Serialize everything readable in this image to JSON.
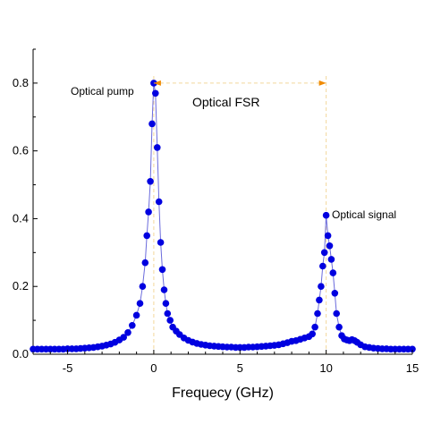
{
  "chart_data": {
    "type": "scatter",
    "title": "",
    "xlabel": "Frequecy (GHz)",
    "ylabel": "",
    "xlim": [
      -7,
      15
    ],
    "ylim": [
      0,
      0.9
    ],
    "xticks": [
      -5,
      0,
      5,
      10,
      15
    ],
    "xtick_labels": [
      "-5",
      "0",
      "5",
      "10",
      "15"
    ],
    "yticks": [
      0.0,
      0.2,
      0.4,
      0.6,
      0.8
    ],
    "ytick_labels": [
      "0.0",
      "0.2",
      "0.4",
      "0.6",
      "0.8"
    ],
    "grid": false,
    "colors": {
      "marker": "#0000e0",
      "line": "#6b6bdc",
      "arrow": "#f08a00",
      "guide": "#f2d79a"
    },
    "annotations": {
      "pump_label": "Optical pump",
      "fsr_label": "Optical FSR",
      "signal_label": "Optical signal"
    },
    "fsr_arrow": {
      "from_x": 0,
      "to_x": 10,
      "y": 0.8
    },
    "guides_x": [
      0,
      10
    ],
    "series": [
      {
        "x": [
          -7.0,
          -6.75,
          -6.5,
          -6.25,
          -6.0,
          -5.75,
          -5.5,
          -5.25,
          -5.0,
          -4.75,
          -4.5,
          -4.25,
          -4.0,
          -3.75,
          -3.5,
          -3.25,
          -3.0,
          -2.75,
          -2.5,
          -2.25,
          -2.0,
          -1.75,
          -1.5,
          -1.25,
          -1.0,
          -0.8,
          -0.65,
          -0.5,
          -0.4,
          -0.3,
          -0.2,
          -0.1,
          0.0,
          0.1,
          0.2,
          0.3,
          0.4,
          0.5,
          0.6,
          0.7,
          0.8,
          0.95,
          1.1,
          1.3,
          1.5,
          1.75,
          2.0,
          2.25,
          2.5,
          2.75,
          3.0,
          3.25,
          3.5,
          3.75,
          4.0,
          4.25,
          4.5,
          4.75,
          5.0,
          5.25,
          5.5,
          5.75,
          6.0,
          6.25,
          6.5,
          6.75,
          7.0,
          7.25,
          7.5,
          7.75,
          8.0,
          8.25,
          8.5,
          8.75,
          9.0,
          9.2,
          9.35,
          9.5,
          9.6,
          9.7,
          9.8,
          9.9,
          10.0,
          10.1,
          10.2,
          10.3,
          10.4,
          10.5,
          10.6,
          10.75,
          10.9,
          11.05,
          11.2,
          11.35,
          11.5,
          11.65,
          11.8,
          12.0,
          12.25,
          12.5,
          12.75,
          13.0,
          13.25,
          13.5,
          13.75,
          14.0,
          14.25,
          14.5,
          14.75,
          15.0
        ],
        "y": [
          0.015,
          0.015,
          0.015,
          0.015,
          0.015,
          0.015,
          0.015,
          0.015,
          0.016,
          0.016,
          0.016,
          0.017,
          0.018,
          0.019,
          0.02,
          0.022,
          0.024,
          0.027,
          0.03,
          0.035,
          0.042,
          0.05,
          0.064,
          0.085,
          0.115,
          0.15,
          0.2,
          0.27,
          0.35,
          0.42,
          0.51,
          0.68,
          0.8,
          0.77,
          0.61,
          0.45,
          0.33,
          0.25,
          0.19,
          0.15,
          0.12,
          0.1,
          0.08,
          0.068,
          0.058,
          0.048,
          0.041,
          0.036,
          0.032,
          0.029,
          0.027,
          0.025,
          0.024,
          0.023,
          0.022,
          0.021,
          0.021,
          0.02,
          0.02,
          0.02,
          0.021,
          0.021,
          0.022,
          0.023,
          0.024,
          0.025,
          0.026,
          0.028,
          0.031,
          0.034,
          0.038,
          0.04,
          0.044,
          0.048,
          0.052,
          0.06,
          0.08,
          0.12,
          0.16,
          0.2,
          0.26,
          0.3,
          0.41,
          0.35,
          0.32,
          0.28,
          0.24,
          0.18,
          0.12,
          0.08,
          0.055,
          0.045,
          0.042,
          0.04,
          0.043,
          0.04,
          0.035,
          0.028,
          0.022,
          0.02,
          0.018,
          0.017,
          0.016,
          0.016,
          0.015,
          0.015,
          0.015,
          0.015,
          0.015,
          0.015
        ]
      }
    ]
  }
}
